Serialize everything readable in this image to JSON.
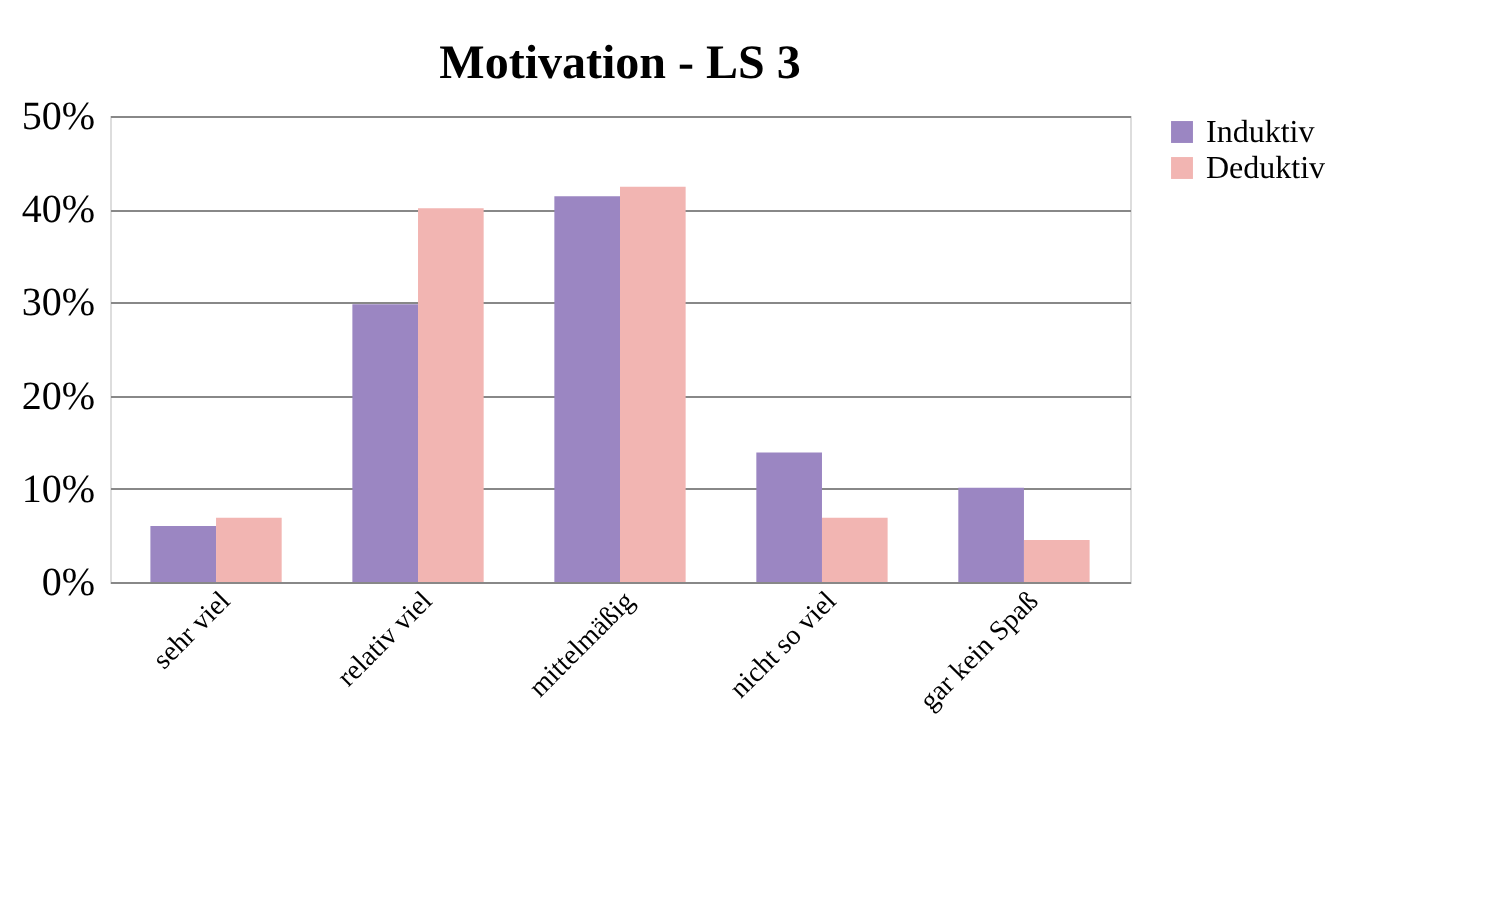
{
  "chart_data": {
    "type": "bar",
    "title": "Motivation - LS 3",
    "categories": [
      "sehr viel",
      "relativ viel",
      "mittelmäßig",
      "nicht so viel",
      "gar kein Spaß"
    ],
    "series": [
      {
        "name": "Induktiv",
        "color": "#9b86c2",
        "values": [
          6,
          29.8,
          41.4,
          13.9,
          10.1
        ]
      },
      {
        "name": "Deduktiv",
        "color": "#f2b5b2",
        "values": [
          6.9,
          40.1,
          42.4,
          6.9,
          4.5
        ]
      }
    ],
    "ylim": [
      0,
      50
    ],
    "yticks": [
      {
        "value": 0,
        "label": "0%"
      },
      {
        "value": 10,
        "label": "10%"
      },
      {
        "value": 20,
        "label": "20%"
      },
      {
        "value": 30,
        "label": "30%"
      },
      {
        "value": 40,
        "label": "40%"
      },
      {
        "value": 50,
        "label": "50%"
      }
    ],
    "grid": "y",
    "legend": "right"
  }
}
